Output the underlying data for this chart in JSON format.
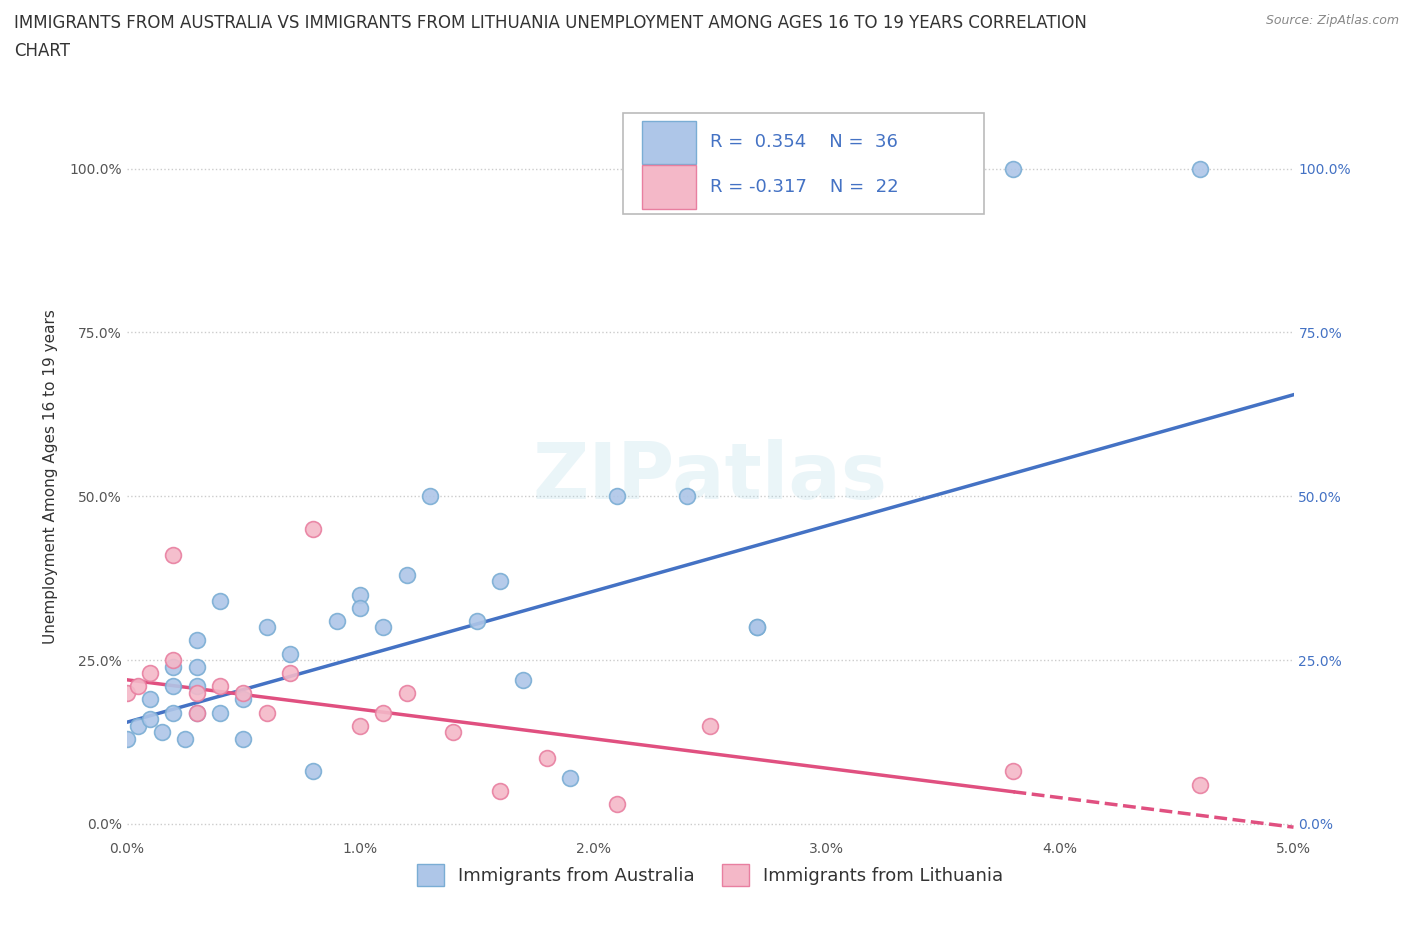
{
  "title_line1": "IMMIGRANTS FROM AUSTRALIA VS IMMIGRANTS FROM LITHUANIA UNEMPLOYMENT AMONG AGES 16 TO 19 YEARS CORRELATION",
  "title_line2": "CHART",
  "source": "Source: ZipAtlas.com",
  "ylabel": "Unemployment Among Ages 16 to 19 years",
  "xlim": [
    0.0,
    0.05
  ],
  "ylim": [
    -0.02,
    1.08
  ],
  "xticks": [
    0.0,
    0.01,
    0.02,
    0.03,
    0.04,
    0.05
  ],
  "xticklabels": [
    "0.0%",
    "1.0%",
    "2.0%",
    "3.0%",
    "4.0%",
    "5.0%"
  ],
  "yticks": [
    0.0,
    0.25,
    0.5,
    0.75,
    1.0
  ],
  "yticklabels": [
    "0.0%",
    "25.0%",
    "50.0%",
    "75.0%",
    "100.0%"
  ],
  "australia_color": "#aec6e8",
  "australia_edge": "#7aadd4",
  "australia_line_color": "#4472c4",
  "lithuania_color": "#f4b8c8",
  "lithuania_edge": "#e87fa0",
  "lithuania_line_color": "#e05080",
  "watermark": "ZIPatlas",
  "R_australia": 0.354,
  "N_australia": 36,
  "R_lithuania": -0.317,
  "N_lithuania": 22,
  "legend_label_australia": "Immigrants from Australia",
  "legend_label_lithuania": "Immigrants from Lithuania",
  "australia_scatter_x": [
    0.0,
    0.0005,
    0.001,
    0.001,
    0.0015,
    0.002,
    0.002,
    0.002,
    0.0025,
    0.003,
    0.003,
    0.003,
    0.003,
    0.004,
    0.004,
    0.005,
    0.005,
    0.006,
    0.007,
    0.008,
    0.009,
    0.01,
    0.01,
    0.011,
    0.012,
    0.013,
    0.015,
    0.016,
    0.017,
    0.019,
    0.021,
    0.024,
    0.027,
    0.027,
    0.038,
    0.046
  ],
  "australia_scatter_y": [
    0.13,
    0.15,
    0.16,
    0.19,
    0.14,
    0.17,
    0.21,
    0.24,
    0.13,
    0.17,
    0.21,
    0.24,
    0.28,
    0.17,
    0.34,
    0.19,
    0.13,
    0.3,
    0.26,
    0.08,
    0.31,
    0.35,
    0.33,
    0.3,
    0.38,
    0.5,
    0.31,
    0.37,
    0.22,
    0.07,
    0.5,
    0.5,
    0.3,
    0.3,
    1.0,
    1.0
  ],
  "lithuania_scatter_x": [
    0.0,
    0.0005,
    0.001,
    0.002,
    0.002,
    0.003,
    0.003,
    0.004,
    0.005,
    0.006,
    0.007,
    0.008,
    0.01,
    0.011,
    0.012,
    0.014,
    0.016,
    0.018,
    0.021,
    0.025,
    0.038,
    0.046
  ],
  "lithuania_scatter_y": [
    0.2,
    0.21,
    0.23,
    0.25,
    0.41,
    0.17,
    0.2,
    0.21,
    0.2,
    0.17,
    0.23,
    0.45,
    0.15,
    0.17,
    0.2,
    0.14,
    0.05,
    0.1,
    0.03,
    0.15,
    0.08,
    0.06
  ],
  "grid_color": "#cccccc",
  "bg_color": "#ffffff",
  "title_fontsize": 12,
  "axis_label_fontsize": 11,
  "tick_fontsize": 10,
  "legend_fontsize": 13
}
